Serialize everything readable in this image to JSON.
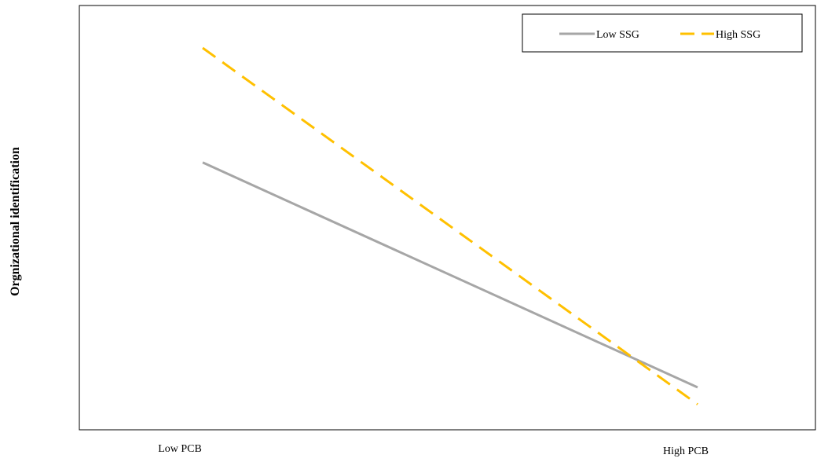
{
  "chart_data": {
    "type": "line",
    "categories": [
      "Low PCB",
      "High PCB"
    ],
    "ylabel": "Orgnizational identification",
    "xlabel": "",
    "ylim": [
      0,
      1
    ],
    "grid": false,
    "legend_position": "top-right",
    "series": [
      {
        "name": "Low SSG",
        "values": [
          0.63,
          0.1
        ],
        "color": "#a6a6a6",
        "style": "solid"
      },
      {
        "name": "High SSG",
        "values": [
          0.9,
          0.06
        ],
        "color": "#ffc000",
        "style": "dashed"
      }
    ]
  }
}
